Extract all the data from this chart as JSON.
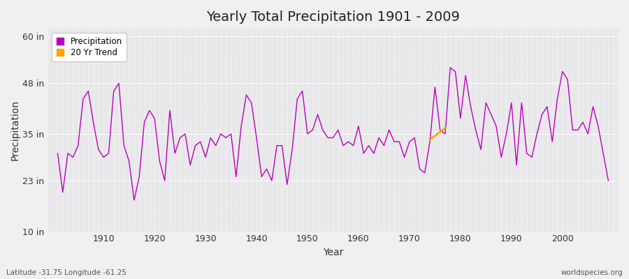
{
  "title": "Yearly Total Precipitation 1901 - 2009",
  "xlabel": "Year",
  "ylabel": "Precipitation",
  "footnote_left": "Latitude -31.75 Longitude -61.25",
  "footnote_right": "worldspecies.org",
  "ylim": [
    10,
    62
  ],
  "yticks": [
    10,
    23,
    35,
    48,
    60
  ],
  "ytick_labels": [
    "10 in",
    "23 in",
    "35 in",
    "48 in",
    "60 in"
  ],
  "xlim": [
    1899,
    2011
  ],
  "xticks": [
    1910,
    1920,
    1930,
    1940,
    1950,
    1960,
    1970,
    1980,
    1990,
    2000
  ],
  "bg_color": "#f0f0f0",
  "plot_bg_color": "#e8e8ea",
  "line_color": "#bb00bb",
  "trend_color": "#ffa500",
  "legend_labels": [
    "Precipitation",
    "20 Yr Trend"
  ],
  "years": [
    1901,
    1902,
    1903,
    1904,
    1905,
    1906,
    1907,
    1908,
    1909,
    1910,
    1911,
    1912,
    1913,
    1914,
    1915,
    1916,
    1917,
    1918,
    1919,
    1920,
    1921,
    1922,
    1923,
    1924,
    1925,
    1926,
    1927,
    1928,
    1929,
    1930,
    1931,
    1932,
    1933,
    1934,
    1935,
    1936,
    1937,
    1938,
    1939,
    1940,
    1941,
    1942,
    1943,
    1944,
    1945,
    1946,
    1947,
    1948,
    1949,
    1950,
    1951,
    1952,
    1953,
    1954,
    1955,
    1956,
    1957,
    1958,
    1959,
    1960,
    1961,
    1962,
    1963,
    1964,
    1965,
    1966,
    1967,
    1968,
    1969,
    1970,
    1971,
    1972,
    1973,
    1974,
    1975,
    1976,
    1977,
    1978,
    1979,
    1980,
    1981,
    1982,
    1983,
    1984,
    1985,
    1986,
    1987,
    1988,
    1989,
    1990,
    1991,
    1992,
    1993,
    1994,
    1995,
    1996,
    1997,
    1998,
    1999,
    2000,
    2001,
    2002,
    2003,
    2004,
    2005,
    2006,
    2007,
    2008,
    2009
  ],
  "precip": [
    30,
    20,
    30,
    29,
    32,
    44,
    46,
    38,
    31,
    29,
    30,
    46,
    48,
    32,
    28,
    18,
    24,
    38,
    41,
    39,
    28,
    23,
    41,
    30,
    34,
    35,
    27,
    32,
    33,
    29,
    34,
    32,
    35,
    34,
    35,
    24,
    37,
    45,
    43,
    34,
    24,
    26,
    23,
    32,
    32,
    22,
    31,
    44,
    46,
    35,
    36,
    40,
    36,
    34,
    34,
    36,
    32,
    33,
    32,
    37,
    30,
    32,
    30,
    34,
    32,
    36,
    33,
    33,
    29,
    33,
    34,
    26,
    25,
    33,
    47,
    36,
    35,
    52,
    51,
    39,
    50,
    42,
    36,
    31,
    43,
    40,
    37,
    29,
    35,
    43,
    27,
    43,
    30,
    29,
    35,
    40,
    42,
    33,
    44,
    51,
    49,
    36,
    36,
    38,
    35,
    42,
    37,
    30,
    23
  ],
  "trend_years": [
    1974,
    1975,
    1976,
    1977
  ],
  "trend_values": [
    33.5,
    34.5,
    35.5,
    36.5
  ]
}
